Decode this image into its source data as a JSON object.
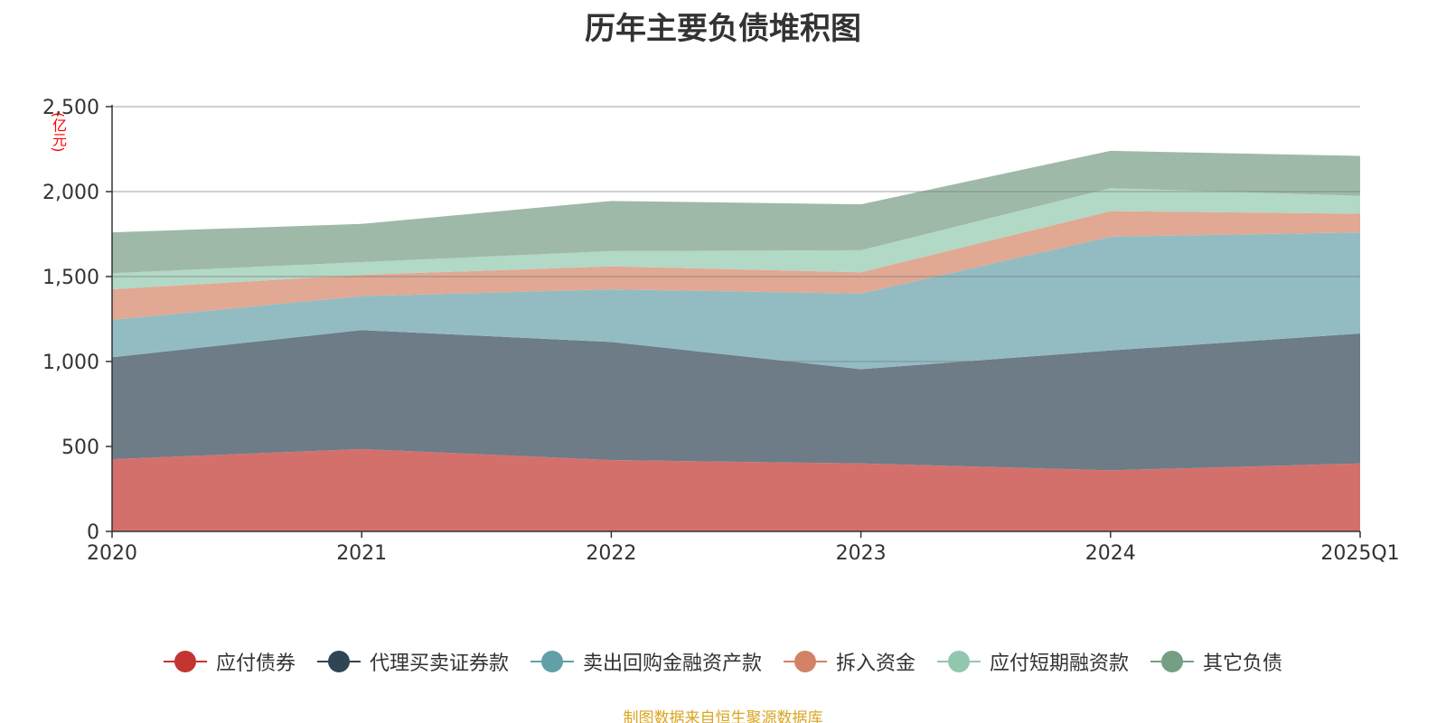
{
  "title": "历年主要负债堆积图",
  "unit_label": "(亿元)",
  "source_note": "制图数据来自恒生聚源数据库",
  "chart_data": {
    "type": "area",
    "stacked": true,
    "title": "历年主要负债堆积图",
    "ylabel": "(亿元)",
    "xlabel": "",
    "categories": [
      "2020",
      "2021",
      "2022",
      "2023",
      "2024",
      "2025Q1"
    ],
    "ylim": [
      0,
      2500
    ],
    "yticks": [
      0,
      500,
      1000,
      1500,
      2000,
      2500
    ],
    "ytick_labels": [
      "0",
      "500",
      "1,000",
      "1,500",
      "2,000",
      "2,500"
    ],
    "grid": true,
    "legend_position": "bottom",
    "series": [
      {
        "name": "应付债券",
        "color": "#c23531",
        "fill": "#d4706c",
        "values": [
          425,
          485,
          420,
          400,
          360,
          400
        ]
      },
      {
        "name": "代理买卖证券款",
        "color": "#2f4554",
        "fill": "#6d7c87",
        "values": [
          600,
          700,
          695,
          555,
          705,
          765
        ]
      },
      {
        "name": "卖出回购金融资产款",
        "color": "#61a0a8",
        "fill": "#93bcc2",
        "values": [
          220,
          200,
          310,
          445,
          670,
          595
        ]
      },
      {
        "name": "拆入资金",
        "color": "#d48265",
        "fill": "#e1a893",
        "values": [
          180,
          125,
          135,
          125,
          150,
          110
        ]
      },
      {
        "name": "应付短期融资款",
        "color": "#91c7ae",
        "fill": "#b2d8c6",
        "values": [
          95,
          75,
          90,
          130,
          135,
          105
        ]
      },
      {
        "name": "其它负债",
        "color": "#749f83",
        "fill": "#9eb9a8",
        "values": [
          240,
          225,
          295,
          270,
          220,
          235
        ]
      }
    ]
  }
}
